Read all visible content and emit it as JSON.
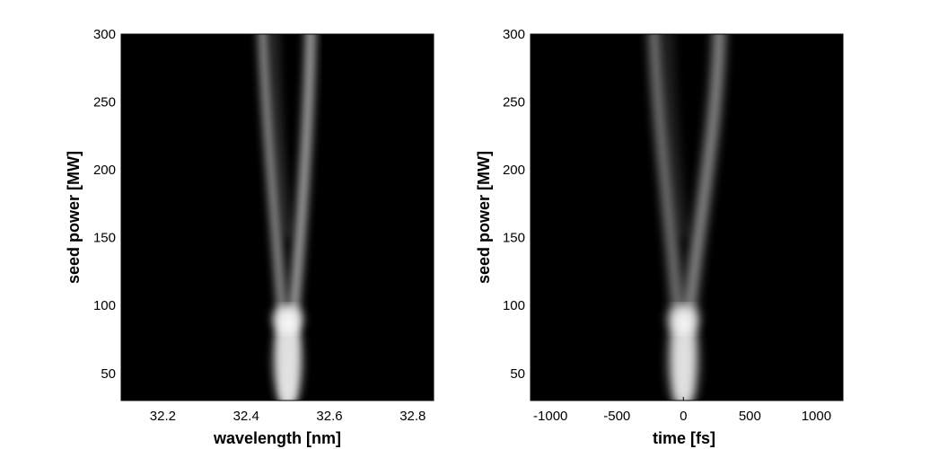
{
  "chart_data": [
    {
      "type": "heatmap",
      "title": "",
      "xlabel": "wavelength [nm]",
      "ylabel": "seed power [MW]",
      "xlim": [
        32.1,
        32.85
      ],
      "ylim": [
        30,
        300
      ],
      "xticks": [
        32.2,
        32.4,
        32.6,
        32.8
      ],
      "xtick_labels": [
        "32.2",
        "32.4",
        "32.6",
        "32.8"
      ],
      "yticks": [
        50,
        100,
        150,
        200,
        250,
        300
      ],
      "ytick_labels": [
        "50",
        "100",
        "150",
        "200",
        "250",
        "300"
      ],
      "colormap": "gray",
      "background": "#000000",
      "feature": {
        "description_shape": "V-shaped spectral intensity: single lobe at low power splitting into two branches at high power",
        "center_x": 32.5,
        "left_branch_top_x": 32.44,
        "right_branch_top_x": 32.555,
        "brightest_power": 90
      }
    },
    {
      "type": "heatmap",
      "title": "",
      "xlabel": "time [fs]",
      "ylabel": "seed power [MW]",
      "xlim": [
        -1150,
        1200
      ],
      "ylim": [
        30,
        300
      ],
      "xticks": [
        -1000,
        -500,
        0,
        500,
        1000
      ],
      "xtick_labels": [
        "-1000",
        "-500",
        "0",
        "500",
        "1000"
      ],
      "yticks": [
        50,
        100,
        150,
        200,
        250,
        300
      ],
      "ytick_labels": [
        "50",
        "100",
        "150",
        "200",
        "250",
        "300"
      ],
      "colormap": "gray",
      "background": "#000000",
      "feature": {
        "description_shape": "V-shaped temporal intensity: single pulse at low power splitting into two sub-pulses at high power",
        "center_x": 0,
        "left_branch_top_x": -220,
        "right_branch_top_x": 270,
        "brightest_power": 90
      }
    }
  ]
}
